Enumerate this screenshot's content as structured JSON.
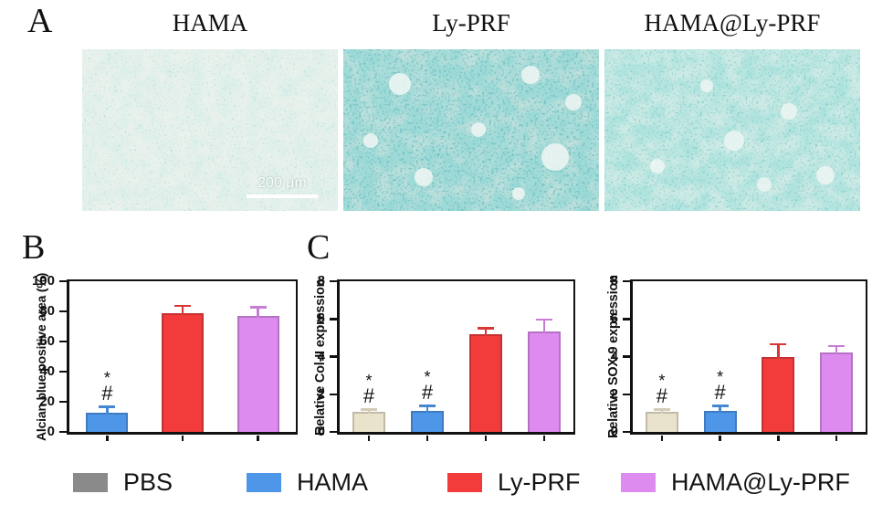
{
  "figure": {
    "panel_a": {
      "label": "A",
      "images": [
        {
          "title": "HAMA",
          "scale_bar": "200 μm",
          "staining": "alcian-blue-sparse"
        },
        {
          "title": "Ly-PRF",
          "staining": "alcian-blue-dense"
        },
        {
          "title": "HAMA@Ly-PRF",
          "staining": "alcian-blue-medium"
        }
      ]
    },
    "panel_b": {
      "label": "B"
    },
    "panel_c": {
      "label": "C"
    },
    "legend": [
      {
        "label": "PBS",
        "color": "#8a8a8a"
      },
      {
        "label": "HAMA",
        "color": "#4d96e8"
      },
      {
        "label": "Ly-PRF",
        "color": "#f23c3c"
      },
      {
        "label": "HAMA@Ly-PRF",
        "color": "#dd8bee"
      }
    ]
  },
  "chart_data": [
    {
      "id": "alcian-blue",
      "type": "bar",
      "ylabel": "Alcian blue positive area (%)",
      "ylim": [
        0,
        100
      ],
      "yticks": [
        0,
        20,
        40,
        60,
        80,
        100
      ],
      "categories": [
        "HAMA",
        "Ly-PRF",
        "HAMA@Ly-PRF"
      ],
      "values": [
        13,
        79,
        77
      ],
      "errors": [
        3.5,
        4.5,
        5.5
      ],
      "colors": [
        "#4d96e8",
        "#f23c3c",
        "#dd8bee"
      ],
      "annotations": [
        "*#",
        null,
        null
      ],
      "grid": false,
      "legend_position": "bottom-shared"
    },
    {
      "id": "col2-expression",
      "type": "bar",
      "ylabel": "Relative Col-II expression",
      "ylim": [
        0,
        8
      ],
      "yticks": [
        0,
        2,
        4,
        6,
        8
      ],
      "categories": [
        "PBS",
        "HAMA",
        "Ly-PRF",
        "HAMA@Ly-PRF"
      ],
      "values": [
        1.05,
        1.1,
        5.2,
        5.35
      ],
      "errors": [
        0.12,
        0.28,
        0.3,
        0.6
      ],
      "colors": [
        "#eae3cc",
        "#4d96e8",
        "#f23c3c",
        "#dd8bee"
      ],
      "annotations": [
        "*#",
        "*#",
        null,
        null
      ],
      "grid": false,
      "legend_position": "bottom-shared"
    },
    {
      "id": "sox9-expression",
      "type": "bar",
      "ylabel": "Relative SOX-9 expression",
      "ylim": [
        0,
        8
      ],
      "yticks": [
        0,
        2,
        4,
        6,
        8
      ],
      "categories": [
        "PBS",
        "HAMA",
        "Ly-PRF",
        "HAMA@Ly-PRF"
      ],
      "values": [
        1.05,
        1.1,
        4.0,
        4.2
      ],
      "errors": [
        0.12,
        0.28,
        0.65,
        0.35
      ],
      "colors": [
        "#eae3cc",
        "#4d96e8",
        "#f23c3c",
        "#dd8bee"
      ],
      "annotations": [
        "*#",
        "*#",
        null,
        null
      ],
      "grid": false,
      "legend_position": "bottom-shared"
    }
  ]
}
